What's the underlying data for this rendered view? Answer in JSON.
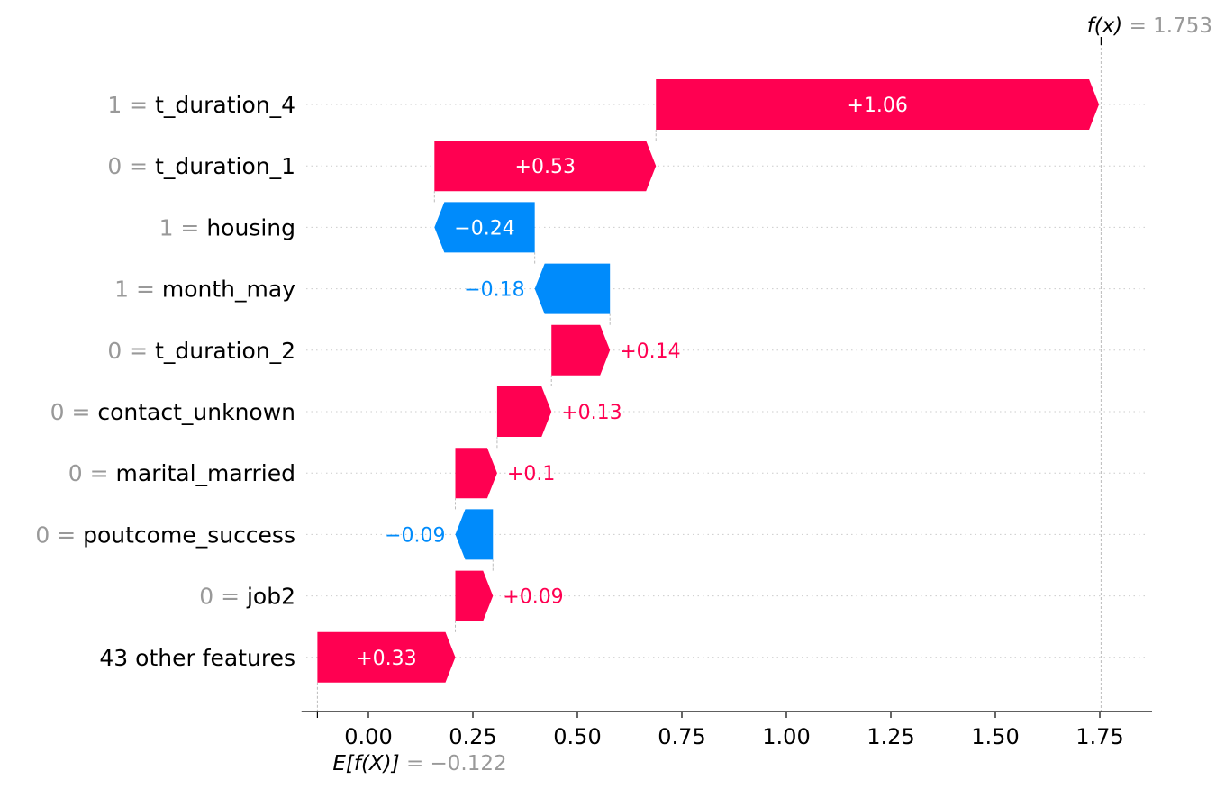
{
  "chart_data": {
    "type": "waterfall",
    "xlim": [
      -0.16,
      1.875
    ],
    "xticks": [
      0.0,
      0.25,
      0.5,
      0.75,
      1.0,
      1.25,
      1.5,
      1.75
    ],
    "tick_labels": [
      "0.00",
      "0.25",
      "0.50",
      "0.75",
      "1.00",
      "1.25",
      "1.50",
      "1.75"
    ],
    "base_value": -0.122,
    "base_label": {
      "name": "E[f(X)]",
      "value": "= −0.122"
    },
    "output_value": 1.753,
    "output_label": {
      "name": "f(x)",
      "value": "= 1.753"
    },
    "features": [
      {
        "value": "1 =",
        "name": "t_duration_4",
        "contribution": 1.06,
        "label": "+1.06"
      },
      {
        "value": "0 =",
        "name": "t_duration_1",
        "contribution": 0.53,
        "label": "+0.53"
      },
      {
        "value": "1 =",
        "name": "housing",
        "contribution": -0.24,
        "label": "−0.24"
      },
      {
        "value": "1 =",
        "name": "month_may",
        "contribution": -0.18,
        "label": "−0.18"
      },
      {
        "value": "0 =",
        "name": "t_duration_2",
        "contribution": 0.14,
        "label": "+0.14"
      },
      {
        "value": "0 =",
        "name": "contact_unknown",
        "contribution": 0.13,
        "label": "+0.13"
      },
      {
        "value": "0 =",
        "name": "marital_married",
        "contribution": 0.1,
        "label": "+0.1"
      },
      {
        "value": "0 =",
        "name": "poutcome_success",
        "contribution": -0.09,
        "label": "−0.09"
      },
      {
        "value": "0 =",
        "name": "job2",
        "contribution": 0.09,
        "label": "+0.09"
      },
      {
        "value": "",
        "name": "43 other features",
        "contribution": 0.33,
        "label": "+0.33"
      }
    ],
    "colors": {
      "positive": "#ff0051",
      "negative": "#008bfb",
      "grid": "#cccccc"
    }
  }
}
